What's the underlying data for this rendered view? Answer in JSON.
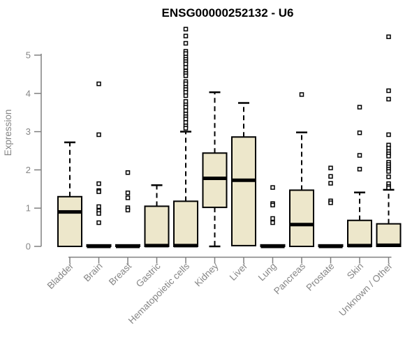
{
  "chart_data": {
    "type": "boxplot",
    "title": "ENSG00000252132 - U6",
    "xlabel": "",
    "ylabel": "Expression",
    "ylim": [
      0,
      5.75
    ],
    "y_ticks": [
      0,
      1,
      2,
      3,
      4,
      5
    ],
    "grid": false,
    "legend": "none",
    "categories": [
      "Bladder",
      "Brain",
      "Breast",
      "Gastric",
      "Hematopoietic cells",
      "Kidney",
      "Liver",
      "Lung",
      "Pancreas",
      "Prostate",
      "Skin",
      "Unknown / Other"
    ],
    "boxes": [
      {
        "category": "Bladder",
        "whisker_low": 0,
        "q1": 0,
        "median": 0.9,
        "q3": 1.3,
        "whisker_high": 2.72,
        "outliers": []
      },
      {
        "category": "Brain",
        "whisker_low": 0,
        "q1": 0,
        "median": 0,
        "q3": 0.04,
        "whisker_high": 0.04,
        "outliers": [
          4.25,
          2.92,
          1.64,
          1.46,
          1.43,
          1.04,
          0.93,
          0.86,
          0.62
        ]
      },
      {
        "category": "Breast",
        "whisker_low": 0,
        "q1": 0,
        "median": 0,
        "q3": 0.04,
        "whisker_high": 0.04,
        "outliers": [
          1.93,
          1.4,
          1.27,
          1.01,
          0.95
        ]
      },
      {
        "category": "Gastric",
        "whisker_low": 0,
        "q1": 0,
        "median": 0.02,
        "q3": 1.05,
        "whisker_high": 1.6,
        "outliers": []
      },
      {
        "category": "Hematopoietic cells",
        "whisker_low": 0,
        "q1": 0,
        "median": 0.02,
        "q3": 1.18,
        "whisker_high": 3.0,
        "outliers": [
          5.68,
          5.5,
          5.31,
          5.1,
          5.04,
          4.95,
          4.89,
          4.83,
          4.77,
          4.68,
          4.58,
          4.52,
          4.46,
          4.31,
          4.25,
          4.16,
          4.1,
          4.03,
          3.94,
          3.79,
          3.7,
          3.64,
          3.55,
          3.46,
          3.39,
          3.33,
          3.24,
          3.15,
          3.09
        ]
      },
      {
        "category": "Kidney",
        "whisker_low": 0,
        "q1": 1.02,
        "median": 1.78,
        "q3": 2.44,
        "whisker_high": 4.03,
        "outliers": []
      },
      {
        "category": "Liver",
        "whisker_low": 0,
        "q1": 0.02,
        "median": 1.73,
        "q3": 2.86,
        "whisker_high": 3.75,
        "outliers": []
      },
      {
        "category": "Lung",
        "whisker_low": 0,
        "q1": 0,
        "median": 0,
        "q3": 0.04,
        "whisker_high": 0.04,
        "outliers": [
          1.54,
          1.12,
          1.08,
          0.73,
          0.62
        ]
      },
      {
        "category": "Pancreas",
        "whisker_low": 0,
        "q1": 0,
        "median": 0.57,
        "q3": 1.47,
        "whisker_high": 2.98,
        "outliers": [
          3.97
        ]
      },
      {
        "category": "Prostate",
        "whisker_low": 0,
        "q1": 0,
        "median": 0,
        "q3": 0.04,
        "whisker_high": 0.04,
        "outliers": [
          2.05,
          1.83,
          1.65,
          1.19,
          1.14
        ]
      },
      {
        "category": "Skin",
        "whisker_low": 0,
        "q1": 0,
        "median": 0.02,
        "q3": 0.68,
        "whisker_high": 1.41,
        "outliers": [
          3.64,
          2.97,
          2.38,
          2.02
        ]
      },
      {
        "category": "Unknown / Other",
        "whisker_low": 0,
        "q1": 0,
        "median": 0.03,
        "q3": 0.59,
        "whisker_high": 1.48,
        "outliers": [
          5.48,
          4.07,
          3.85,
          2.92,
          2.65,
          2.57,
          2.48,
          2.42,
          2.36,
          2.2,
          2.14,
          2.08,
          2.02,
          1.96,
          1.82,
          1.64,
          1.57,
          1.53
        ]
      }
    ],
    "colors": {
      "box_fill": "#ede7cb",
      "box_stroke": "#000000",
      "median": "#000000",
      "whisker": "#000000",
      "outlier_stroke": "#000000",
      "outlier_fill": "#ffffff",
      "axis": "#808080",
      "axis_text": "#858585",
      "title": "#000000",
      "background": "#ffffff"
    }
  }
}
